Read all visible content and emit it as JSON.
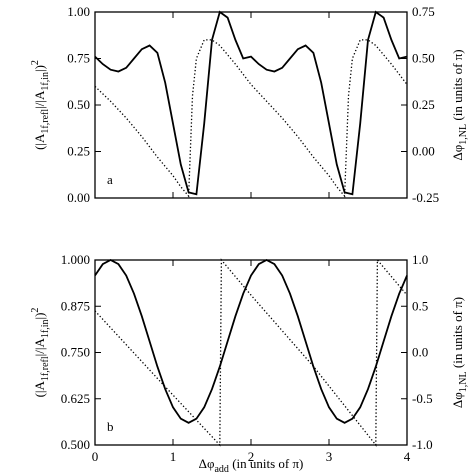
{
  "chart_data": [
    {
      "type": "line",
      "panel_label": "a",
      "xlim": [
        0,
        4
      ],
      "xticks": [
        0,
        1,
        2,
        3,
        4
      ],
      "ylim": [
        0,
        1
      ],
      "yticks": [
        {
          "value": 0,
          "label": "0.00"
        },
        0.25,
        {
          "value": 0.5,
          "label": "0.50"
        },
        0.75,
        {
          "value": 1,
          "label": "1.00"
        }
      ],
      "y2lim": [
        -0.25,
        0.75
      ],
      "y2ticks": [
        -0.25,
        {
          "value": 0,
          "label": "0.00"
        },
        0.25,
        {
          "value": 0.5,
          "label": "0.50"
        },
        0.75
      ],
      "ylabel": [
        {
          "text": "(|A"
        },
        {
          "text": "1f,refl",
          "shift": "sub"
        },
        {
          "text": "|/|A"
        },
        {
          "text": "1f,in",
          "shift": "sub"
        },
        {
          "text": "|)"
        },
        {
          "text": "2",
          "shift": "super"
        }
      ],
      "y2label": [
        {
          "text": "Δφ"
        },
        {
          "text": "1,NL",
          "shift": "sub"
        },
        {
          "text": " (in units of π)"
        }
      ],
      "series": [
        {
          "linestyle": "solid",
          "color": "#000000",
          "axis": "y",
          "x": [
            0,
            0.1,
            0.2,
            0.3,
            0.4,
            0.5,
            0.6,
            0.7,
            0.8,
            0.9,
            1.0,
            1.1,
            1.2,
            1.3,
            1.4,
            1.5,
            1.6,
            1.7,
            1.8,
            1.9,
            2.0,
            2.1,
            2.2,
            2.3,
            2.4,
            2.5,
            2.6,
            2.7,
            2.8,
            2.9,
            3.0,
            3.1,
            3.2,
            3.3,
            3.4,
            3.5,
            3.6,
            3.7,
            3.8,
            3.9,
            4.0
          ],
          "values": [
            0.76,
            0.72,
            0.69,
            0.68,
            0.7,
            0.75,
            0.8,
            0.82,
            0.78,
            0.62,
            0.4,
            0.18,
            0.03,
            0.02,
            0.4,
            0.85,
            1.0,
            0.97,
            0.85,
            0.75,
            0.76,
            0.72,
            0.69,
            0.68,
            0.7,
            0.75,
            0.8,
            0.82,
            0.78,
            0.62,
            0.4,
            0.18,
            0.03,
            0.02,
            0.4,
            0.85,
            1.0,
            0.97,
            0.85,
            0.75,
            0.76
          ]
        },
        {
          "linestyle": "dotted",
          "color": "#000000",
          "axis": "y2",
          "x": [
            0,
            0.2,
            0.4,
            0.6,
            0.8,
            1.0,
            1.1,
            1.2,
            1.25,
            1.3,
            1.4,
            1.5,
            1.6,
            1.8,
            2.0,
            2.2,
            2.4,
            2.6,
            2.8,
            3.0,
            3.1,
            3.2,
            3.25,
            3.3,
            3.4,
            3.5,
            3.6,
            3.8,
            4.0
          ],
          "values": [
            0.35,
            0.27,
            0.18,
            0.08,
            -0.03,
            -0.13,
            -0.19,
            -0.24,
            0.3,
            0.5,
            0.6,
            0.6,
            0.57,
            0.47,
            0.36,
            0.27,
            0.18,
            0.08,
            -0.03,
            -0.13,
            -0.19,
            -0.24,
            0.3,
            0.5,
            0.6,
            0.6,
            0.57,
            0.47,
            0.36
          ]
        }
      ]
    },
    {
      "type": "line",
      "panel_label": "b",
      "xlim": [
        0,
        4
      ],
      "xticks": [
        0,
        1,
        2,
        3,
        4
      ],
      "xlabel": [
        {
          "text": "Δφ"
        },
        {
          "text": "add",
          "shift": "sub"
        },
        {
          "text": " (in units of π)"
        }
      ],
      "ylim": [
        0.5,
        1
      ],
      "yticks": [
        {
          "value": 0.5,
          "label": "0.500"
        },
        0.625,
        {
          "value": 0.75,
          "label": "0.750"
        },
        0.875,
        {
          "value": 1,
          "label": "1.000"
        }
      ],
      "y2lim": [
        -1,
        1
      ],
      "y2ticks": [
        {
          "value": -1,
          "label": "-1.0"
        },
        -0.5,
        {
          "value": 0,
          "label": "0.0"
        },
        0.5,
        {
          "value": 1,
          "label": "1.0"
        }
      ],
      "ylabel": [
        {
          "text": "(|A"
        },
        {
          "text": "1f,refl",
          "shift": "sub"
        },
        {
          "text": "|/|A"
        },
        {
          "text": "1f,in",
          "shift": "sub"
        },
        {
          "text": "|)"
        },
        {
          "text": "2",
          "shift": "super"
        }
      ],
      "y2label": [
        {
          "text": "Δφ"
        },
        {
          "text": "1,NL",
          "shift": "sub"
        },
        {
          "text": " (in units of π)"
        }
      ],
      "series": [
        {
          "linestyle": "solid",
          "color": "#000000",
          "axis": "y",
          "x": [
            0,
            0.1,
            0.2,
            0.3,
            0.4,
            0.5,
            0.6,
            0.7,
            0.8,
            0.9,
            1.0,
            1.1,
            1.2,
            1.3,
            1.4,
            1.5,
            1.6,
            1.7,
            1.8,
            1.9,
            2.0,
            2.1,
            2.2,
            2.3,
            2.4,
            2.5,
            2.6,
            2.7,
            2.8,
            2.9,
            3.0,
            3.1,
            3.2,
            3.3,
            3.4,
            3.5,
            3.6,
            3.7,
            3.8,
            3.9,
            4.0
          ],
          "values": [
            0.958,
            0.989,
            1.0,
            0.989,
            0.958,
            0.909,
            0.848,
            0.78,
            0.712,
            0.651,
            0.602,
            0.571,
            0.56,
            0.571,
            0.602,
            0.651,
            0.712,
            0.78,
            0.848,
            0.909,
            0.958,
            0.989,
            1.0,
            0.989,
            0.958,
            0.909,
            0.848,
            0.78,
            0.712,
            0.651,
            0.602,
            0.571,
            0.56,
            0.571,
            0.602,
            0.651,
            0.712,
            0.78,
            0.848,
            0.909,
            0.958
          ]
        },
        {
          "linestyle": "dotted",
          "color": "#000000",
          "axis": "y2",
          "x": [
            0,
            0.8,
            1.6,
            1.62,
            2.0,
            2.8,
            3.6,
            3.62,
            4.0
          ],
          "values": [
            0.45,
            -0.28,
            -1.0,
            1.0,
            0.62,
            -0.15,
            -1.0,
            1.0,
            0.62
          ]
        }
      ]
    }
  ]
}
